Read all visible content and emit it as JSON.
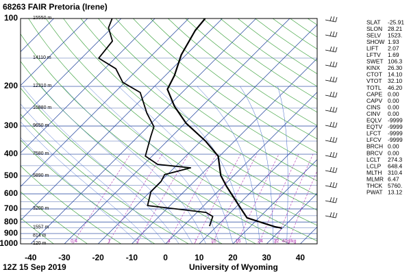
{
  "chart_data": {
    "type": "skewt",
    "title": "68263 FAIR Pretoria (Irene)",
    "time": "12Z 15 Sep 2019",
    "source": "University of Wyoming",
    "xlim": [
      -43,
      45
    ],
    "xticks": [
      -40,
      -30,
      -20,
      -10,
      0,
      10,
      20,
      30,
      40
    ],
    "ylim": [
      1000,
      100
    ],
    "yticks": [
      100,
      200,
      300,
      400,
      500,
      600,
      700,
      800,
      900,
      1000
    ],
    "log_y": true,
    "height_levels": [
      {
        "pressure": 100,
        "label": "15550 m"
      },
      {
        "pressure": 150,
        "label": "14110 m"
      },
      {
        "pressure": 200,
        "label": "12310 m"
      },
      {
        "pressure": 250,
        "label": "10880 m"
      },
      {
        "pressure": 300,
        "label": "9650 m"
      },
      {
        "pressure": 400,
        "label": "7580 m"
      },
      {
        "pressure": 500,
        "label": "5890 m"
      },
      {
        "pressure": 700,
        "label": "3200 m"
      },
      {
        "pressure": 850,
        "label": "1557 m"
      },
      {
        "pressure": 925,
        "label": "814 m"
      },
      {
        "pressure": 1000,
        "label": "120 m"
      }
    ],
    "mixing_ratios": [
      0.4,
      1,
      2,
      4,
      7,
      10,
      16,
      24,
      32,
      {
        "value": 40,
        "label": "40g/kg"
      }
    ],
    "series": [
      {
        "color": "#000000",
        "width": 2.2,
        "pressure": [
          851,
          839,
          767,
          690,
          555,
          497,
          408,
          350,
          292,
          245,
          206,
          179,
          145,
          113,
          100
        ],
        "values": [
          29.8,
          27.3,
          16.5,
          11.4,
          1.0,
          -3.9,
          -10.4,
          -18.6,
          -29.6,
          -38.2,
          -45.3,
          -47.3,
          -51.4,
          -54.5,
          -55.1
        ]
      },
      {
        "color": "#000000",
        "width": 1.8,
        "pressure": [
          834,
          756,
          725,
          676,
          587,
          529,
          493,
          460,
          444,
          408,
          336,
          302,
          263,
          213,
          192,
          167,
          150,
          126,
          110,
          100
        ],
        "values": [
          7.8,
          5.9,
          2.7,
          -16.7,
          -19.8,
          -19.8,
          -20.8,
          -15.1,
          -25.9,
          -32.0,
          -36.1,
          -38.2,
          -44.3,
          -52.4,
          -60.6,
          -66.7,
          -74.9,
          -75.9,
          -81.0,
          -82.7
        ]
      }
    ],
    "indices": [
      [
        "SLAT",
        "-25.91"
      ],
      [
        "SLON",
        "28.21"
      ],
      [
        "SELV",
        "1523."
      ],
      [
        "SHOW",
        "1.93"
      ],
      [
        "LIFT",
        "2.07"
      ],
      [
        "LFTV",
        "1.69"
      ],
      [
        "SWET",
        "106.3"
      ],
      [
        "KINX",
        "26.30"
      ],
      [
        "CTOT",
        "14.10"
      ],
      [
        "VTOT",
        "32.10"
      ],
      [
        "TOTL",
        "46.20"
      ],
      [
        "CAPE",
        "0.00"
      ],
      [
        "CAPV",
        "0.00"
      ],
      [
        "CINS",
        "0.00"
      ],
      [
        "CINV",
        "0.00"
      ],
      [
        "EQLV",
        "-9999"
      ],
      [
        "EQTV",
        "-9999"
      ],
      [
        "LFCT",
        "-9999"
      ],
      [
        "LFCV",
        "-9999"
      ],
      [
        "BRCH",
        "0.00"
      ],
      [
        "BRCV",
        "0.00"
      ],
      [
        "LCLT",
        "274.3"
      ],
      [
        "LCLP",
        "648.4"
      ],
      [
        "MLTH",
        "310.4"
      ],
      [
        "MLMR",
        "6.47"
      ],
      [
        "THCK",
        "5760."
      ],
      [
        "PWAT",
        "13.12"
      ]
    ]
  }
}
